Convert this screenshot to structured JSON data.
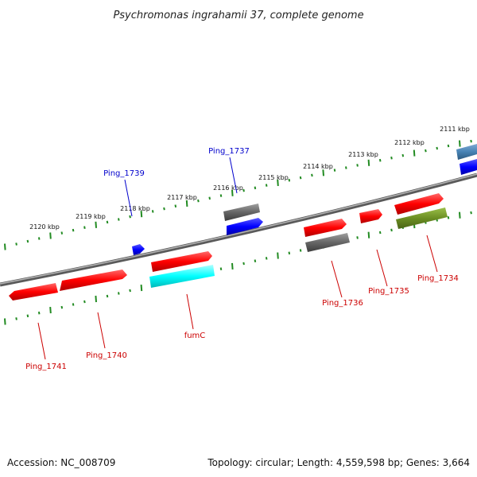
{
  "title": "Psychromonas ingrahamii 37, complete genome",
  "footer": {
    "accession": "Accession: NC_008709",
    "summary": "Topology: circular; Length: 4,559,598 bp; Genes: 3,664"
  },
  "scale_labels": [
    "2111 kbp",
    "2112 kbp",
    "2113 kbp",
    "2114 kbp",
    "2115 kbp",
    "2116 kbp",
    "2117 kbp",
    "2118 kbp",
    "2119 kbp",
    "2120 kbp"
  ],
  "genes": [
    {
      "label": "Ping_1737",
      "color": "#0000cc"
    },
    {
      "label": "Ping_1739",
      "color": "#0000cc"
    },
    {
      "label": "Ping_1734",
      "color": "#cc0000"
    },
    {
      "label": "Ping_1735",
      "color": "#cc0000"
    },
    {
      "label": "Ping_1736",
      "color": "#cc0000"
    },
    {
      "label": "fumC",
      "color": "#cc0000"
    },
    {
      "label": "Ping_1740",
      "color": "#cc0000"
    },
    {
      "label": "Ping_1741",
      "color": "#cc0000"
    }
  ],
  "colors": {
    "backbone": "#808080",
    "ticks": "#228b22",
    "cds_red": "#ff0000",
    "cds_blue": "#0000ff",
    "cds_grey": "#666666",
    "cds_cyan": "#00ffff",
    "cds_olive": "#6b8e23",
    "cds_steel": "#4682b4"
  }
}
